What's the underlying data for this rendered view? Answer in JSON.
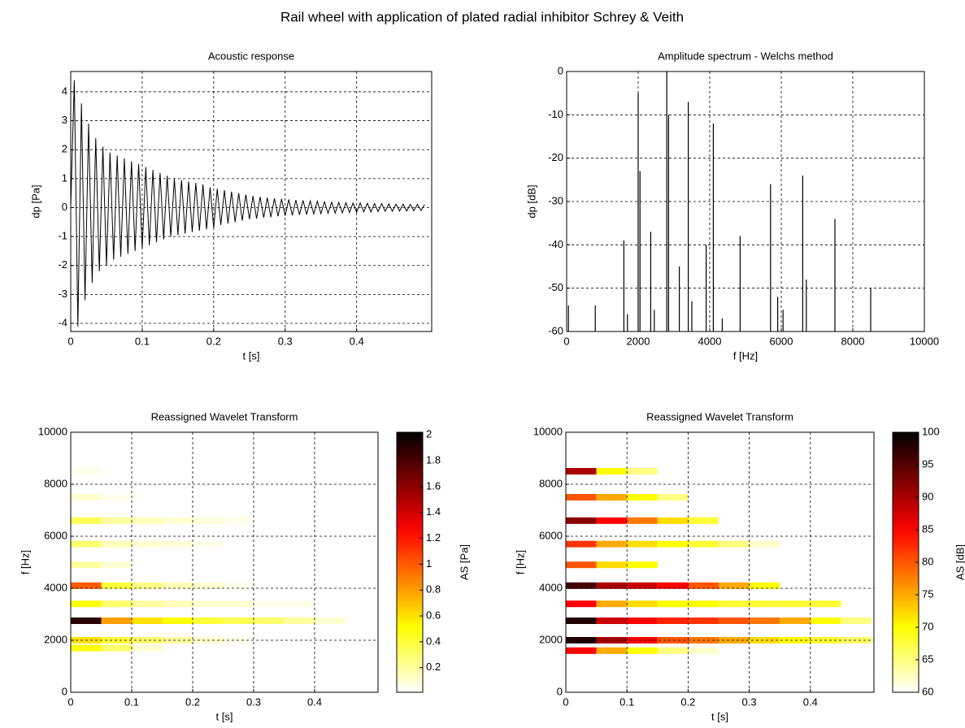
{
  "title": "Rail wheel with application of plated radial inhibitor Schrey & Veith",
  "chart_data": [
    {
      "type": "line",
      "title": "Acoustic response",
      "xlabel": "t [s]",
      "ylabel": "dp [Pa]",
      "color": "#000000",
      "grid": true,
      "x": [
        0,
        0.005,
        0.01,
        0.015,
        0.02,
        0.025,
        0.03,
        0.035,
        0.04,
        0.045,
        0.05,
        0.055,
        0.06,
        0.065,
        0.07,
        0.075,
        0.08,
        0.085,
        0.09,
        0.095,
        0.1,
        0.105,
        0.11,
        0.115,
        0.12,
        0.125,
        0.13,
        0.135,
        0.14,
        0.145,
        0.15,
        0.155,
        0.16,
        0.165,
        0.17,
        0.175,
        0.18,
        0.185,
        0.19,
        0.195,
        0.2,
        0.205,
        0.21,
        0.215,
        0.22,
        0.225,
        0.23,
        0.235,
        0.24,
        0.245,
        0.25,
        0.255,
        0.26,
        0.265,
        0.27,
        0.275,
        0.28,
        0.285,
        0.29,
        0.295,
        0.3,
        0.305,
        0.31,
        0.315,
        0.32,
        0.325,
        0.33,
        0.335,
        0.34,
        0.345,
        0.35,
        0.355,
        0.36,
        0.365,
        0.37,
        0.375,
        0.38,
        0.385,
        0.39,
        0.395,
        0.4,
        0.405,
        0.41,
        0.415,
        0.42,
        0.425,
        0.43,
        0.435,
        0.44,
        0.445,
        0.45,
        0.455,
        0.46,
        0.465,
        0.47,
        0.475,
        0.48,
        0.485,
        0.49,
        0.495
      ],
      "values": [
        0,
        4.4,
        -4.1,
        3.6,
        -3.2,
        2.9,
        -2.6,
        2.4,
        -2.2,
        2.1,
        -2.0,
        1.9,
        -1.8,
        1.8,
        -1.7,
        1.7,
        -1.6,
        1.6,
        -1.5,
        1.5,
        -1.4,
        1.4,
        -1.3,
        1.3,
        -1.2,
        1.2,
        -1.1,
        1.1,
        -1.0,
        1.0,
        -0.95,
        0.95,
        -0.9,
        0.9,
        -0.85,
        0.85,
        -0.8,
        0.8,
        -0.75,
        0.7,
        -0.7,
        0.65,
        -0.6,
        0.6,
        -0.55,
        0.55,
        -0.5,
        0.5,
        -0.45,
        0.45,
        -0.4,
        0.4,
        -0.38,
        0.37,
        -0.35,
        0.34,
        -0.33,
        0.32,
        -0.3,
        0.3,
        -0.28,
        0.28,
        -0.27,
        0.26,
        -0.25,
        0.25,
        -0.24,
        0.23,
        -0.22,
        0.22,
        -0.21,
        0.2,
        -0.2,
        0.19,
        -0.19,
        0.18,
        -0.18,
        0.17,
        -0.17,
        0.16,
        -0.16,
        0.16,
        -0.15,
        0.15,
        -0.15,
        0.14,
        -0.14,
        0.14,
        -0.13,
        0.13,
        -0.13,
        0.12,
        -0.12,
        0.12,
        -0.12,
        0.11,
        -0.11,
        0.11,
        -0.1,
        0.1
      ],
      "xlim": [
        0,
        0.505
      ],
      "ylim": [
        -4.28,
        4.7
      ],
      "xticks": [
        0,
        0.1,
        0.2,
        0.3,
        0.4
      ],
      "yticks": [
        -4,
        -3,
        -2,
        -1,
        0,
        1,
        2,
        3,
        4
      ]
    },
    {
      "type": "stem",
      "title": "Amplitude spectrum - Welchs method",
      "xlabel": "f [Hz]",
      "ylabel": "dp [dB]",
      "color": "#000000",
      "grid": true,
      "x": [
        50,
        800,
        1600,
        1700,
        2000,
        2050,
        2350,
        2450,
        2800,
        2850,
        3150,
        3400,
        3500,
        3900,
        4100,
        4350,
        4850,
        5700,
        5900,
        6050,
        6600,
        6700,
        7500,
        8500
      ],
      "values": [
        -54,
        -54,
        -39,
        -56,
        -5,
        -23,
        -37,
        -55,
        0,
        -10,
        -45,
        -7,
        -53,
        -40,
        -12,
        -57,
        -38,
        -26,
        -52,
        -55,
        -24,
        -48,
        -34,
        -50
      ],
      "xlim": [
        0,
        10000
      ],
      "ylim": [
        -60,
        0
      ],
      "xticks": [
        0,
        2000,
        4000,
        6000,
        8000,
        10000
      ],
      "yticks": [
        -60,
        -50,
        -40,
        -30,
        -20,
        -10,
        0
      ]
    },
    {
      "type": "heatmap",
      "title": "Reassigned Wavelet Transform",
      "xlabel": "t [s]",
      "ylabel": "f [Hz]",
      "colorbar_label": "AS [Pa]",
      "colormap": "hot_r",
      "grid": true,
      "x": [
        0,
        0.05,
        0.1,
        0.15,
        0.2,
        0.25,
        0.3,
        0.35,
        0.4,
        0.45,
        0.5
      ],
      "y": [
        1700,
        2000,
        2750,
        3400,
        4100,
        4900,
        5700,
        6600,
        7500,
        8500
      ],
      "values": [
        [
          0.5,
          0.3,
          0.1,
          null,
          null,
          null,
          null,
          null,
          null,
          null
        ],
        [
          0.6,
          0.4,
          0.3,
          0.2,
          0.1,
          0.05,
          null,
          null,
          null,
          null
        ],
        [
          1.9,
          0.8,
          0.6,
          0.5,
          0.4,
          0.35,
          0.3,
          0.2,
          0.1,
          null
        ],
        [
          0.5,
          0.3,
          0.2,
          0.15,
          0.1,
          0.1,
          0.05,
          0.05,
          null,
          null
        ],
        [
          1.0,
          0.4,
          0.25,
          0.15,
          0.1,
          0.05,
          null,
          null,
          null,
          null
        ],
        [
          0.2,
          0.1,
          null,
          null,
          null,
          null,
          null,
          null,
          null,
          null
        ],
        [
          0.3,
          0.15,
          0.1,
          0.08,
          0.05,
          null,
          null,
          null,
          null,
          null
        ],
        [
          0.35,
          0.2,
          0.15,
          0.1,
          0.08,
          0.05,
          null,
          null,
          null,
          null
        ],
        [
          0.1,
          0.05,
          null,
          null,
          null,
          null,
          null,
          null,
          null,
          null
        ],
        [
          0.05,
          null,
          null,
          null,
          null,
          null,
          null,
          null,
          null,
          null
        ]
      ],
      "xlim": [
        0,
        0.504
      ],
      "ylim": [
        0,
        10000
      ],
      "xticks": [
        0,
        0.1,
        0.2,
        0.3,
        0.4
      ],
      "yticks": [
        0,
        2000,
        4000,
        6000,
        8000,
        10000
      ],
      "clim": [
        0.01,
        2.02
      ],
      "cticks": [
        0.2,
        0.4,
        0.6,
        0.8,
        1,
        1.2,
        1.4,
        1.6,
        1.8,
        2
      ]
    },
    {
      "type": "heatmap",
      "title": "Reassigned Wavelet Transform",
      "xlabel": "t [s]",
      "ylabel": "f [Hz]",
      "colorbar_label": "AS [dB]",
      "colormap": "hot_r",
      "grid": true,
      "x": [
        0,
        0.05,
        0.1,
        0.15,
        0.2,
        0.25,
        0.3,
        0.35,
        0.4,
        0.45,
        0.5
      ],
      "y": [
        1600,
        2000,
        2750,
        3400,
        4100,
        4900,
        5700,
        6600,
        7500,
        8500
      ],
      "values": [
        [
          85,
          75,
          70,
          65,
          62,
          null,
          null,
          null,
          null,
          null
        ],
        [
          98,
          90,
          85,
          80,
          78,
          75,
          72,
          70,
          68,
          66
        ],
        [
          98,
          88,
          85,
          83,
          82,
          80,
          78,
          75,
          70,
          65
        ],
        [
          85,
          75,
          72,
          70,
          70,
          68,
          68,
          68,
          68,
          null
        ],
        [
          96,
          90,
          88,
          85,
          80,
          75,
          70,
          null,
          null,
          null
        ],
        [
          80,
          72,
          70,
          null,
          null,
          null,
          null,
          null,
          null,
          null
        ],
        [
          82,
          75,
          72,
          70,
          68,
          65,
          62,
          null,
          null,
          null
        ],
        [
          92,
          85,
          78,
          72,
          68,
          null,
          null,
          null,
          null,
          null
        ],
        [
          80,
          75,
          70,
          65,
          null,
          null,
          null,
          null,
          null,
          null
        ],
        [
          90,
          70,
          65,
          null,
          null,
          null,
          null,
          null,
          null,
          null
        ]
      ],
      "xlim": [
        0,
        0.504
      ],
      "ylim": [
        0,
        10000
      ],
      "xticks": [
        0,
        0.1,
        0.2,
        0.3,
        0.4
      ],
      "yticks": [
        0,
        2000,
        4000,
        6000,
        8000,
        10000
      ],
      "clim": [
        60,
        100
      ],
      "cticks": [
        60,
        65,
        70,
        75,
        80,
        85,
        90,
        95,
        100
      ]
    }
  ]
}
